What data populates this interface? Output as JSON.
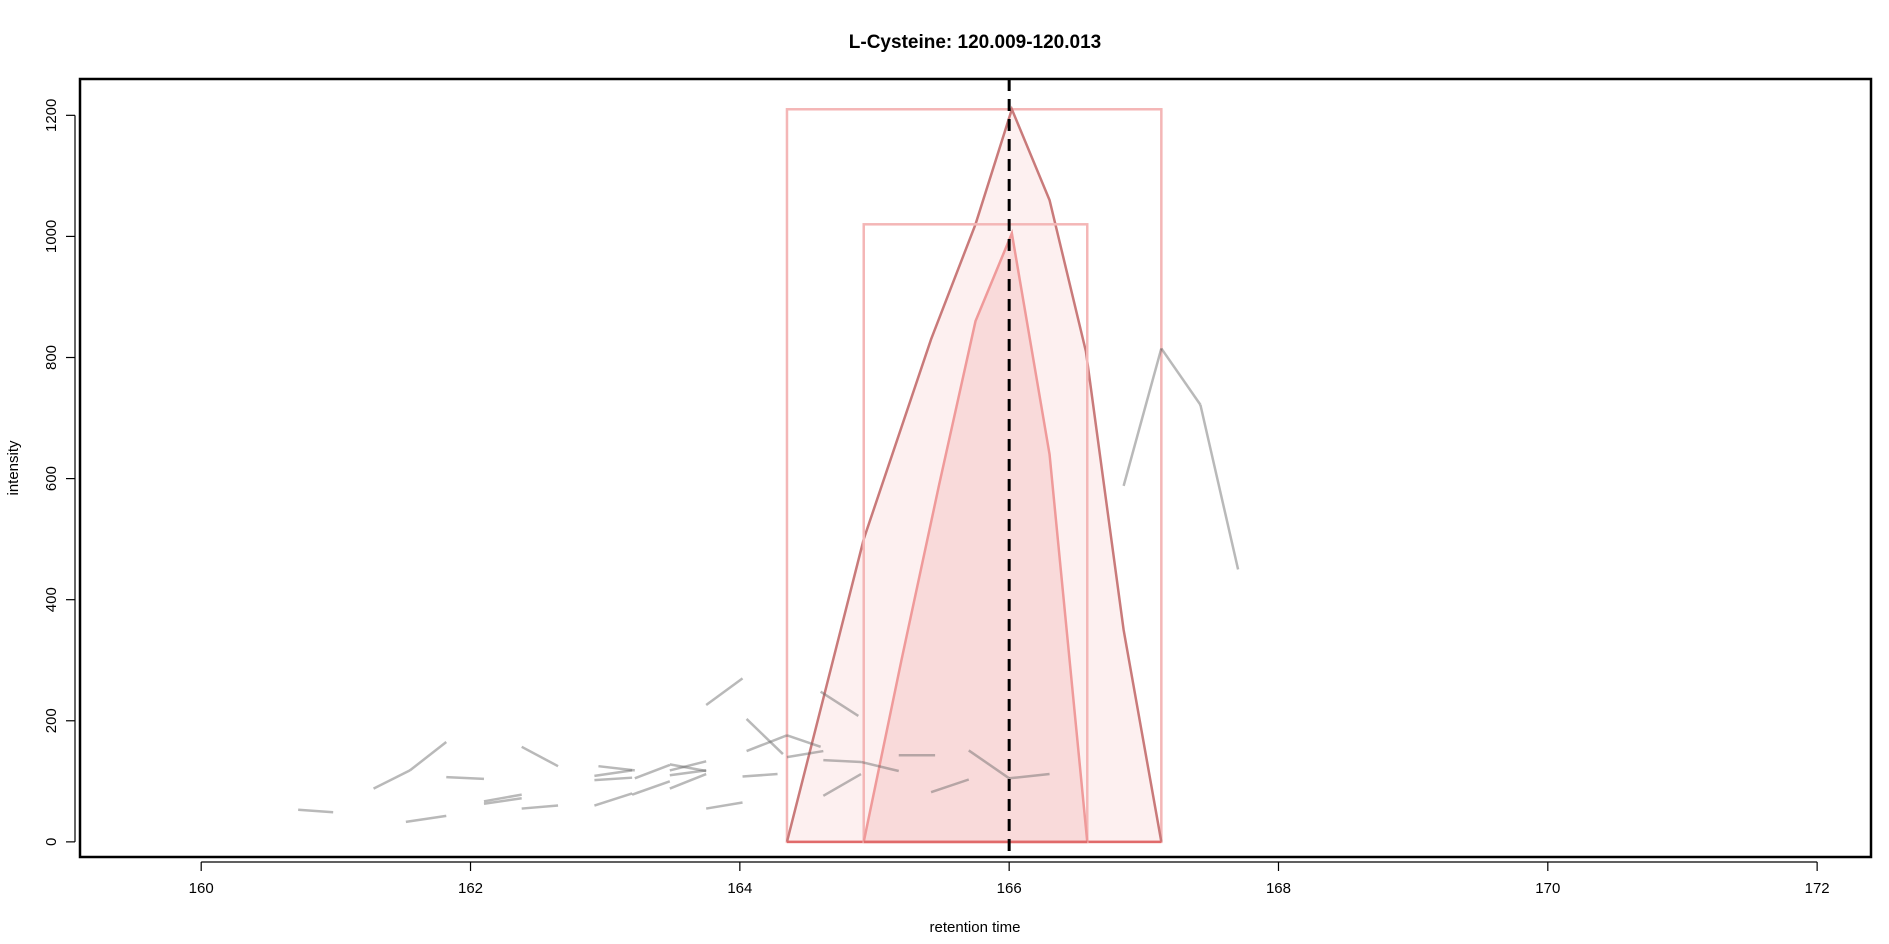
{
  "chart_data": {
    "type": "line",
    "title": "L-Cysteine: 120.009-120.013",
    "xlabel": "retention time",
    "ylabel": "intensity",
    "xlim": [
      159.1,
      172.4
    ],
    "ylim": [
      -25,
      1260
    ],
    "x_ticks": [
      160,
      162,
      164,
      166,
      168,
      170,
      172
    ],
    "y_ticks": [
      0,
      200,
      400,
      600,
      800,
      1000,
      1200
    ],
    "grid": false,
    "legend": "none",
    "vline": {
      "x": 166.0,
      "style": "dashed",
      "color": "#000000"
    },
    "peaks": [
      {
        "rt_min": 164.35,
        "rt_max": 167.13,
        "max_intensity": 1210,
        "profile_x": [
          164.35,
          164.92,
          165.42,
          165.75,
          166.02,
          166.3,
          166.57,
          166.85,
          167.13
        ],
        "profile_y": [
          0,
          500,
          830,
          1020,
          1210,
          1060,
          810,
          350,
          0
        ]
      },
      {
        "rt_min": 164.92,
        "rt_max": 166.58,
        "max_intensity": 1020,
        "profile_x": [
          164.92,
          165.2,
          165.48,
          165.75,
          166.02,
          166.3,
          166.58
        ],
        "profile_y": [
          0,
          300,
          590,
          860,
          1005,
          640,
          0
        ]
      }
    ],
    "noise_segments": [
      {
        "x": [
          160.72,
          160.98
        ],
        "y": [
          53,
          49
        ]
      },
      {
        "x": [
          161.28,
          161.55
        ],
        "y": [
          88,
          118
        ]
      },
      {
        "x": [
          161.55,
          161.82
        ],
        "y": [
          118,
          165
        ]
      },
      {
        "x": [
          161.52,
          161.82
        ],
        "y": [
          33,
          43
        ]
      },
      {
        "x": [
          161.82,
          162.1
        ],
        "y": [
          107,
          104
        ]
      },
      {
        "x": [
          162.1,
          162.38
        ],
        "y": [
          67,
          78
        ]
      },
      {
        "x": [
          162.1,
          162.38
        ],
        "y": [
          63,
          72
        ]
      },
      {
        "x": [
          162.38,
          162.65
        ],
        "y": [
          157,
          125
        ]
      },
      {
        "x": [
          162.38,
          162.65
        ],
        "y": [
          55,
          60
        ]
      },
      {
        "x": [
          162.92,
          163.2
        ],
        "y": [
          60,
          80
        ]
      },
      {
        "x": [
          162.92,
          163.2
        ],
        "y": [
          109,
          118
        ]
      },
      {
        "x": [
          162.92,
          163.2
        ],
        "y": [
          102,
          106
        ]
      },
      {
        "x": [
          162.95,
          163.22
        ],
        "y": [
          125,
          118
        ]
      },
      {
        "x": [
          163.2,
          163.48
        ],
        "y": [
          78,
          100
        ]
      },
      {
        "x": [
          163.22,
          163.48
        ],
        "y": [
          105,
          127
        ]
      },
      {
        "x": [
          163.48,
          163.75
        ],
        "y": [
          128,
          117
        ]
      },
      {
        "x": [
          163.48,
          163.75
        ],
        "y": [
          110,
          118
        ]
      },
      {
        "x": [
          163.48,
          163.75
        ],
        "y": [
          88,
          112
        ]
      },
      {
        "x": [
          163.48,
          163.75
        ],
        "y": [
          118,
          133
        ]
      },
      {
        "x": [
          163.75,
          164.02
        ],
        "y": [
          55,
          65
        ]
      },
      {
        "x": [
          163.75,
          164.02
        ],
        "y": [
          226,
          270
        ]
      },
      {
        "x": [
          164.02,
          164.28
        ],
        "y": [
          108,
          112
        ]
      },
      {
        "x": [
          164.05,
          164.32
        ],
        "y": [
          203,
          145
        ]
      },
      {
        "x": [
          164.05,
          164.35
        ],
        "y": [
          150,
          176
        ]
      },
      {
        "x": [
          164.35,
          164.6
        ],
        "y": [
          176,
          157
        ]
      },
      {
        "x": [
          164.35,
          164.62
        ],
        "y": [
          140,
          150
        ]
      },
      {
        "x": [
          164.6,
          164.88
        ],
        "y": [
          248,
          208
        ]
      },
      {
        "x": [
          164.62,
          164.9
        ],
        "y": [
          135,
          132
        ]
      },
      {
        "x": [
          164.9,
          165.18
        ],
        "y": [
          132,
          117
        ]
      },
      {
        "x": [
          165.18,
          165.45
        ],
        "y": [
          143,
          143
        ]
      },
      {
        "x": [
          165.42,
          165.7
        ],
        "y": [
          82,
          103
        ]
      },
      {
        "x": [
          165.7,
          166.0
        ],
        "y": [
          151,
          105
        ]
      },
      {
        "x": [
          166.0,
          166.3
        ],
        "y": [
          105,
          112
        ]
      },
      {
        "x": [
          164.62,
          164.9
        ],
        "y": [
          76,
          112
        ]
      },
      {
        "x": [
          166.85,
          167.13
        ],
        "y": [
          588,
          815
        ]
      },
      {
        "x": [
          167.13,
          167.42
        ],
        "y": [
          815,
          722
        ]
      },
      {
        "x": [
          167.42,
          167.7
        ],
        "y": [
          722,
          450
        ]
      }
    ]
  }
}
